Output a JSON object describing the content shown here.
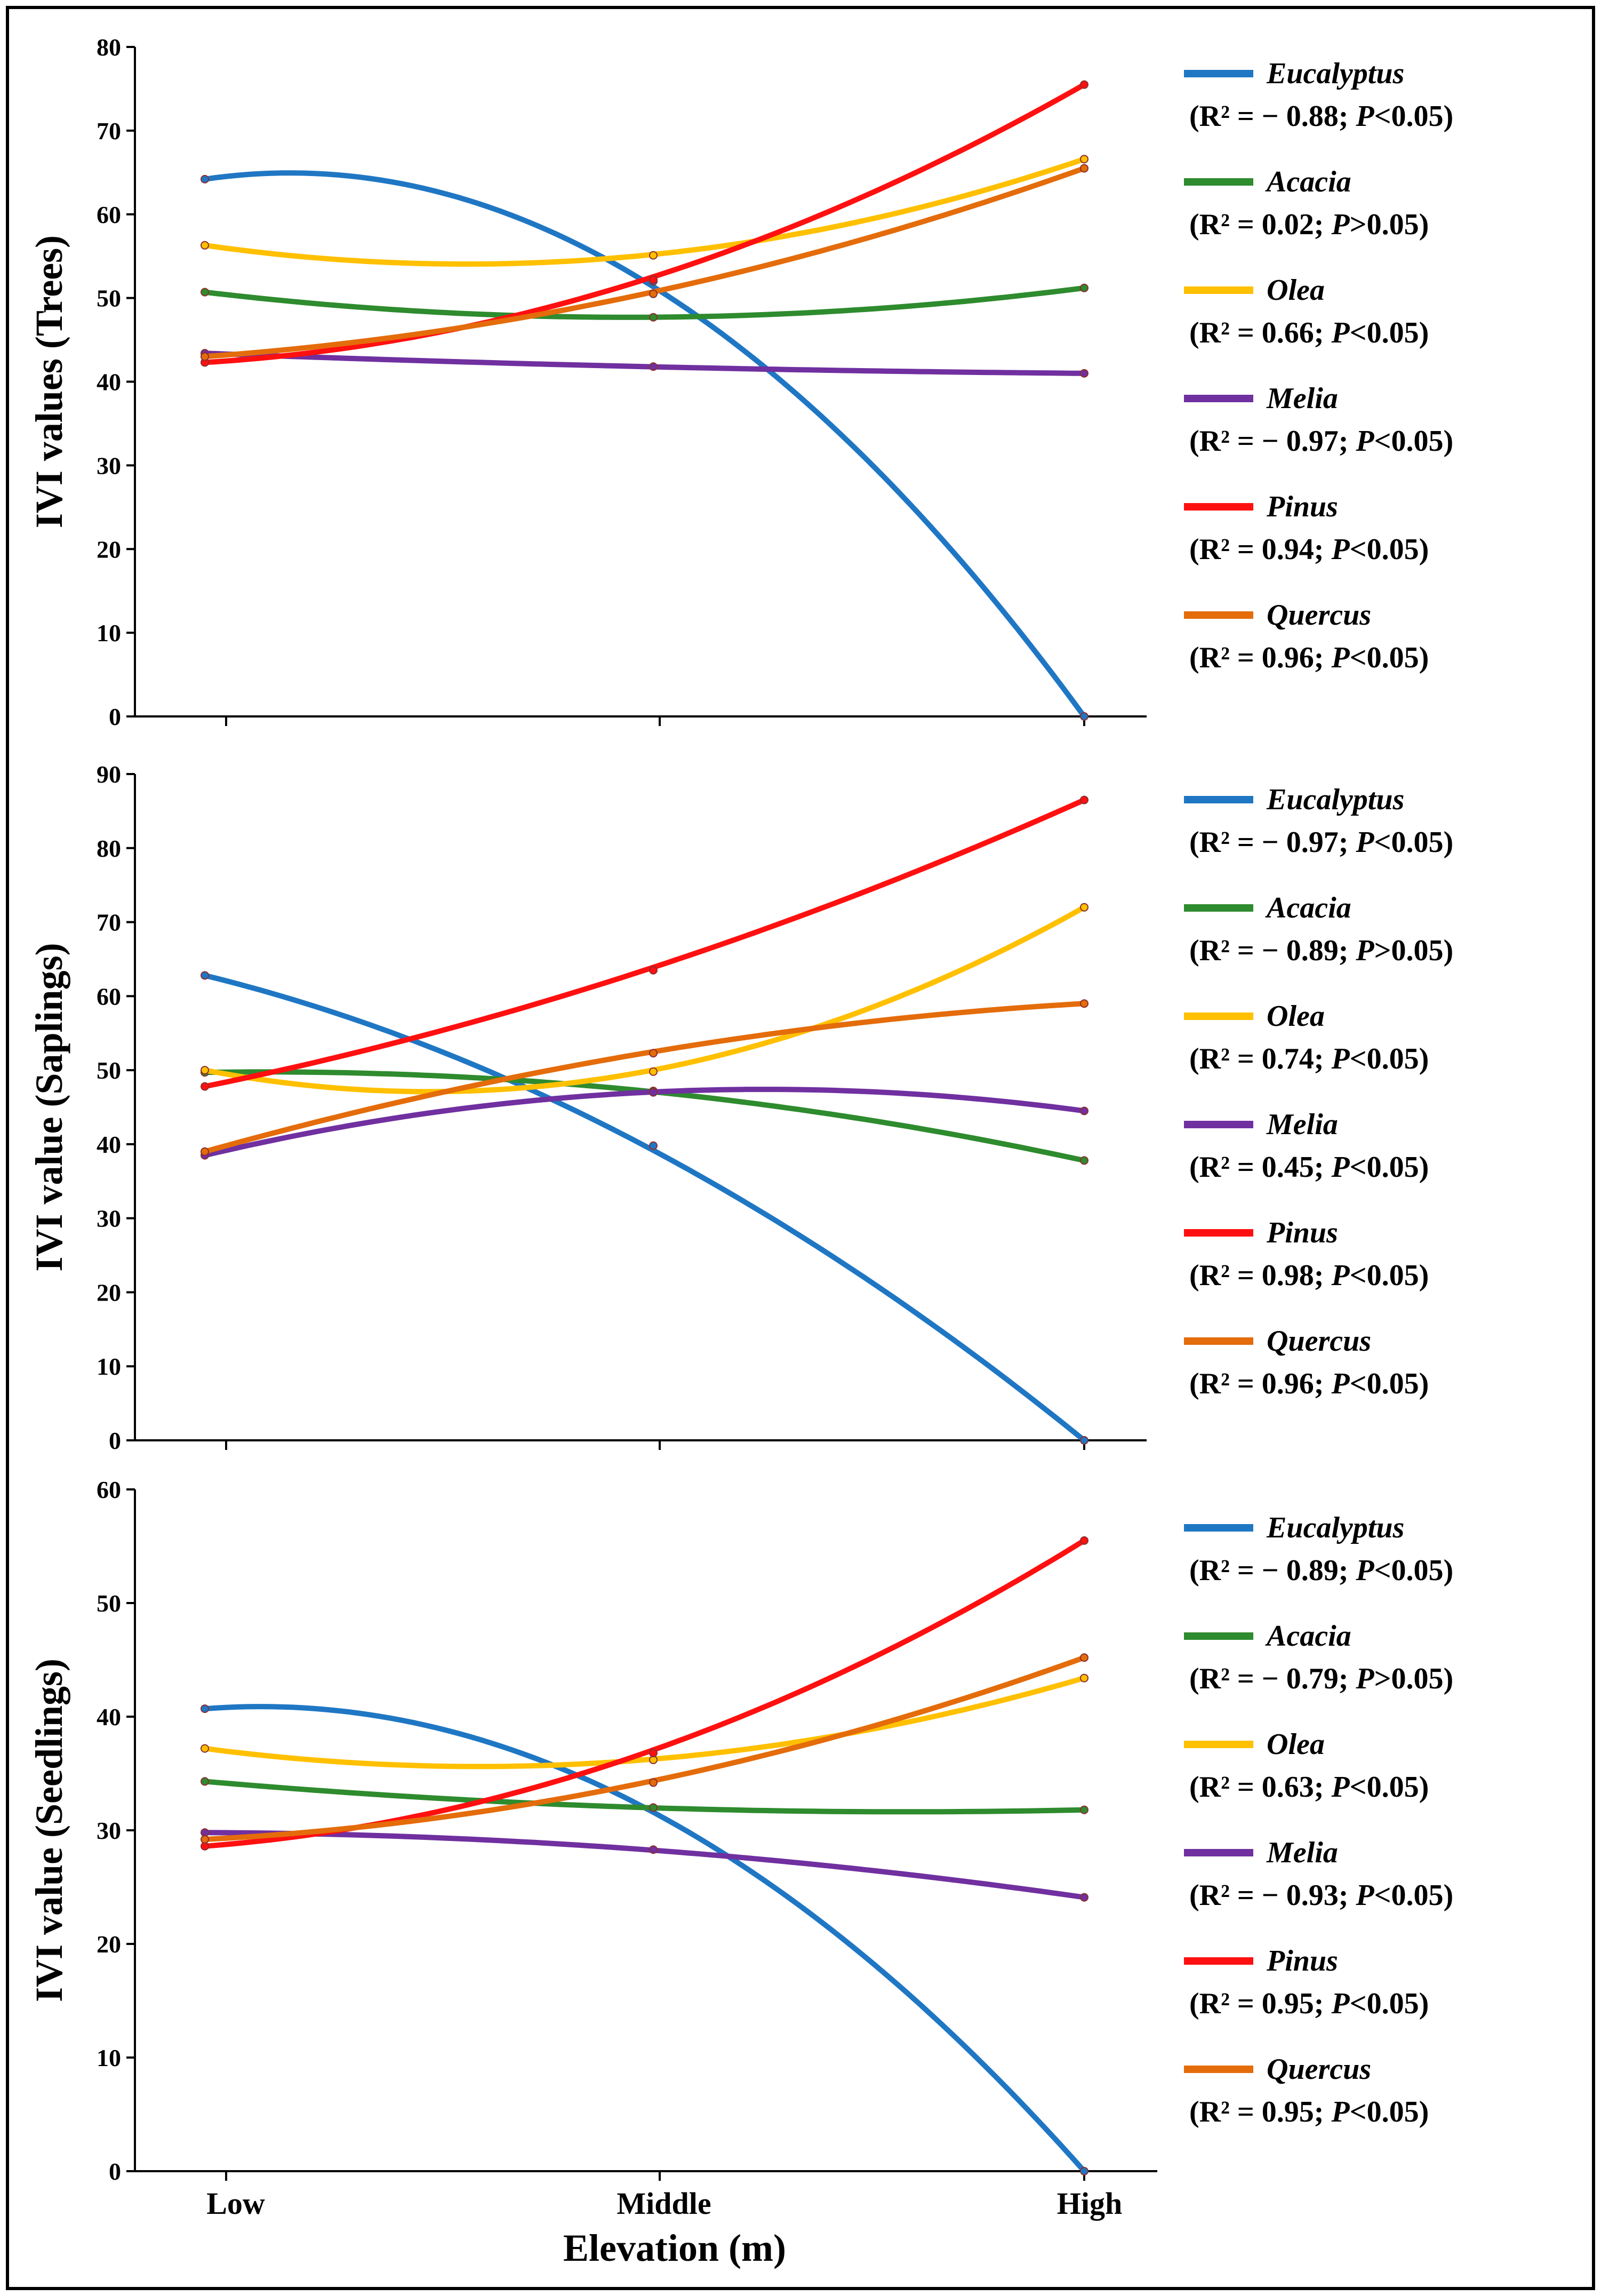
{
  "figure": {
    "x_axis_title": "Elevation (m)",
    "categories": [
      "Low",
      "Middle",
      "High"
    ]
  },
  "chart_data": [
    {
      "type": "line",
      "title": "",
      "ylabel": "IVI values (Trees)",
      "xlabel": "",
      "categories": [
        "Low",
        "Middle",
        "High"
      ],
      "ylim": [
        0,
        80
      ],
      "yticks": [
        0,
        10,
        20,
        30,
        40,
        50,
        60,
        70,
        80
      ],
      "show_x_tick_labels": false,
      "series": [
        {
          "name": "Eucalyptus",
          "color": "#1f77c4",
          "values": [
            64.2,
            52.0,
            0.0
          ],
          "stat": "(R² = − 0.88; ",
          "p_sign": "<",
          "p_val": "0.05)"
        },
        {
          "name": "Acacia",
          "color": "#2e8b2e",
          "values": [
            50.7,
            47.7,
            51.2
          ],
          "stat": "(R² = 0.02; ",
          "p_sign": ">",
          "p_val": "0.05)"
        },
        {
          "name": "Olea",
          "color": "#ffc000",
          "values": [
            56.3,
            55.1,
            66.6
          ],
          "stat": "(R² = 0.66; ",
          "p_sign": "<",
          "p_val": "0.05)"
        },
        {
          "name": "Melia",
          "color": "#7030a0",
          "values": [
            43.4,
            41.8,
            41.0
          ],
          "stat": "(R² = − 0.97; ",
          "p_sign": "<",
          "p_val": "0.05)"
        },
        {
          "name": "Pinus",
          "color": "#ff1010",
          "values": [
            42.3,
            52.2,
            75.5
          ],
          "stat": "(R² = 0.94; ",
          "p_sign": "<",
          "p_val": "0.05)"
        },
        {
          "name": "Quercus",
          "color": "#e46c0a",
          "values": [
            43.0,
            50.5,
            65.5
          ],
          "stat": "(R² = 0.96; ",
          "p_sign": "<",
          "p_val": "0.05)"
        }
      ]
    },
    {
      "type": "line",
      "title": "",
      "ylabel": "IVI value (Saplings)",
      "xlabel": "",
      "categories": [
        "Low",
        "Middle",
        "High"
      ],
      "ylim": [
        0,
        90
      ],
      "yticks": [
        0,
        10,
        20,
        30,
        40,
        50,
        60,
        70,
        80,
        90
      ],
      "show_x_tick_labels": false,
      "series": [
        {
          "name": "Eucalyptus",
          "color": "#1f77c4",
          "values": [
            62.8,
            39.8,
            0.0
          ],
          "stat": "(R² = − 0.97; ",
          "p_sign": "<",
          "p_val": "0.05)"
        },
        {
          "name": "Acacia",
          "color": "#2e8b2e",
          "values": [
            49.7,
            47.2,
            37.8
          ],
          "stat": "(R² = − 0.89; ",
          "p_sign": ">",
          "p_val": "0.05)"
        },
        {
          "name": "Olea",
          "color": "#ffc000",
          "values": [
            50.0,
            49.8,
            72.0
          ],
          "stat": "(R² = 0.74; ",
          "p_sign": "<",
          "p_val": "0.05)"
        },
        {
          "name": "Melia",
          "color": "#7030a0",
          "values": [
            38.5,
            47.0,
            44.5
          ],
          "stat": "(R² = 0.45; ",
          "p_sign": "<",
          "p_val": "0.05)"
        },
        {
          "name": "Pinus",
          "color": "#ff1010",
          "values": [
            47.8,
            63.5,
            86.5
          ],
          "stat": "(R² = 0.98; ",
          "p_sign": "<",
          "p_val": "0.05)"
        },
        {
          "name": "Quercus",
          "color": "#e46c0a",
          "values": [
            39.0,
            52.3,
            59.0
          ],
          "stat": "(R² = 0.96; ",
          "p_sign": "<",
          "p_val": "0.05)"
        }
      ]
    },
    {
      "type": "line",
      "title": "",
      "ylabel": "IVI value (Seedlings)",
      "xlabel": "Elevation (m)",
      "categories": [
        "Low",
        "Middle",
        "High"
      ],
      "ylim": [
        0,
        60
      ],
      "yticks": [
        0,
        10,
        20,
        30,
        40,
        50,
        60
      ],
      "show_x_tick_labels": true,
      "series": [
        {
          "name": "Eucalyptus",
          "color": "#1f77c4",
          "values": [
            40.7,
            32.0,
            0.0
          ],
          "stat": "(R² = − 0.89; ",
          "p_sign": "<",
          "p_val": "0.05)"
        },
        {
          "name": "Acacia",
          "color": "#2e8b2e",
          "values": [
            34.3,
            32.0,
            31.8
          ],
          "stat": "(R² = − 0.79; ",
          "p_sign": ">",
          "p_val": "0.05)"
        },
        {
          "name": "Olea",
          "color": "#ffc000",
          "values": [
            37.2,
            36.2,
            43.4
          ],
          "stat": "(R² = 0.63; ",
          "p_sign": "<",
          "p_val": "0.05)"
        },
        {
          "name": "Melia",
          "color": "#7030a0",
          "values": [
            29.8,
            28.3,
            24.1
          ],
          "stat": "(R² = − 0.93; ",
          "p_sign": "<",
          "p_val": "0.05)"
        },
        {
          "name": "Pinus",
          "color": "#ff1010",
          "values": [
            28.6,
            36.8,
            55.5
          ],
          "stat": "(R² = 0.95; ",
          "p_sign": "<",
          "p_val": "0.05)"
        },
        {
          "name": "Quercus",
          "color": "#e46c0a",
          "values": [
            29.2,
            34.2,
            45.2
          ],
          "stat": "(R² = 0.95; ",
          "p_sign": "<",
          "p_val": "0.05)"
        }
      ]
    }
  ]
}
